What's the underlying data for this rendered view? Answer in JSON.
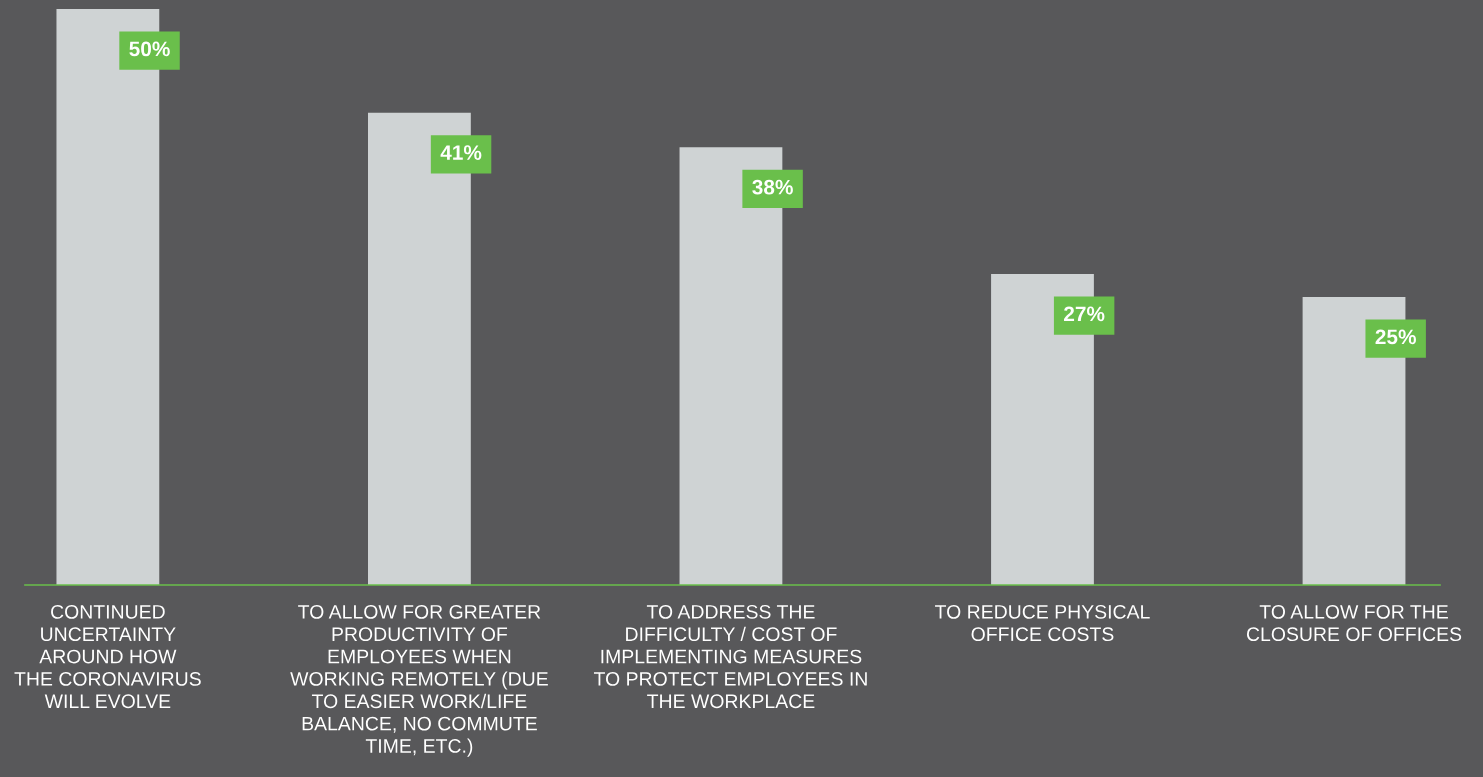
{
  "chart_data": {
    "type": "bar",
    "categories": [
      "CONTINUED\nUNCERTAINTY\nAROUND HOW\nTHE CORONAVIRUS\nWILL EVOLVE",
      "TO ALLOW FOR GREATER\nPRODUCTIVITY OF\nEMPLOYEES WHEN\nWORKING REMOTELY (DUE\nTO EASIER WORK/LIFE\nBALANCE, NO COMMUTE\nTIME, ETC.)",
      "TO ADDRESS THE\nDIFFICULTY / COST OF\nIMPLEMENTING MEASURES\nTO PROTECT EMPLOYEES IN\nTHE WORKPLACE",
      "TO REDUCE PHYSICAL\nOFFICE COSTS",
      "TO ALLOW FOR THE\nCLOSURE OF OFFICES"
    ],
    "values": [
      50,
      41,
      38,
      27,
      25
    ],
    "value_labels": [
      "50%",
      "41%",
      "38%",
      "27%",
      "25%"
    ],
    "color": "#cfd3d4",
    "ylim": [
      0,
      50
    ],
    "grid": false,
    "legend": false
  }
}
